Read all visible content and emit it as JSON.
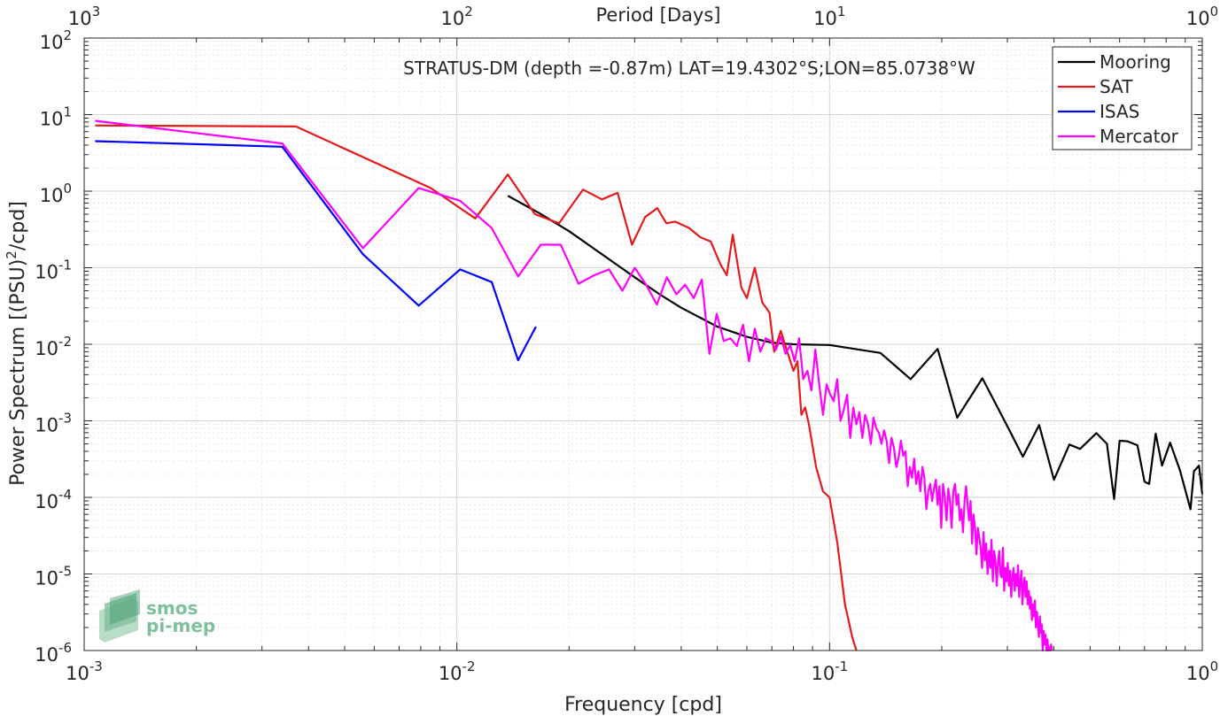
{
  "chart_data": {
    "type": "line",
    "title": "STRATUS-DM (depth =-0.87m) LAT=19.4302°S;LON=85.0738°W",
    "xlabel": "Frequency [cpd]",
    "ylabel": "Power Spectrum [(PSU)",
    "ylabel_sup": "2",
    "ylabel_tail": "/cpd]",
    "top_xlabel": "Period [Days]",
    "xscale": "log",
    "yscale": "log",
    "xlim": [
      0.001,
      1
    ],
    "ylim": [
      1e-06,
      100
    ],
    "grid": true,
    "legend_position": "top-right",
    "x_ticks": [
      {
        "base": "10",
        "exp": "-3",
        "value": 0.001
      },
      {
        "base": "10",
        "exp": "-2",
        "value": 0.01
      },
      {
        "base": "10",
        "exp": "-1",
        "value": 0.1
      },
      {
        "base": "10",
        "exp": "0",
        "value": 1
      }
    ],
    "y_ticks": [
      {
        "base": "10",
        "exp": "-6",
        "value": 1e-06
      },
      {
        "base": "10",
        "exp": "-5",
        "value": 1e-05
      },
      {
        "base": "10",
        "exp": "-4",
        "value": 0.0001
      },
      {
        "base": "10",
        "exp": "-3",
        "value": 0.001
      },
      {
        "base": "10",
        "exp": "-2",
        "value": 0.01
      },
      {
        "base": "10",
        "exp": "-1",
        "value": 0.1
      },
      {
        "base": "10",
        "exp": "0",
        "value": 1
      },
      {
        "base": "10",
        "exp": "1",
        "value": 10
      },
      {
        "base": "10",
        "exp": "2",
        "value": 100
      }
    ],
    "top_ticks": [
      {
        "base": "10",
        "exp": "3",
        "value": 0.001
      },
      {
        "base": "10",
        "exp": "2",
        "value": 0.01
      },
      {
        "base": "10",
        "exp": "1",
        "value": 0.1
      },
      {
        "base": "10",
        "exp": "0",
        "value": 1
      }
    ],
    "series": [
      {
        "name": "Mooring",
        "color": "#000000",
        "points": [
          [
            0.0137,
            0.87
          ],
          [
            0.0166,
            0.52
          ],
          [
            0.02,
            0.3
          ],
          [
            0.025,
            0.14
          ],
          [
            0.03,
            0.075
          ],
          [
            0.035,
            0.045
          ],
          [
            0.04,
            0.03
          ],
          [
            0.05,
            0.017
          ],
          [
            0.06,
            0.0125
          ],
          [
            0.07,
            0.0105
          ],
          [
            0.08,
            0.01
          ],
          [
            0.1,
            0.0098
          ],
          [
            0.137,
            0.0077
          ],
          [
            0.165,
            0.0035
          ],
          [
            0.195,
            0.0087
          ],
          [
            0.22,
            0.0011
          ],
          [
            0.257,
            0.0036
          ],
          [
            0.3,
            0.00085
          ],
          [
            0.33,
            0.00034
          ],
          [
            0.365,
            0.00088
          ],
          [
            0.4,
            0.00017
          ],
          [
            0.44,
            0.00049
          ],
          [
            0.47,
            0.00043
          ],
          [
            0.52,
            0.00069
          ],
          [
            0.555,
            0.0005
          ],
          [
            0.58,
            9.5e-05
          ],
          [
            0.6,
            0.00055
          ],
          [
            0.63,
            0.00054
          ],
          [
            0.67,
            0.00048
          ],
          [
            0.7,
            0.00016
          ],
          [
            0.72,
            0.00015
          ],
          [
            0.75,
            0.00068
          ],
          [
            0.78,
            0.00026
          ],
          [
            0.82,
            0.00052
          ],
          [
            0.87,
            0.00023
          ],
          [
            0.93,
            7e-05
          ],
          [
            0.95,
            0.00022
          ],
          [
            0.98,
            0.00026
          ],
          [
            1.0,
            0.00011
          ]
        ]
      },
      {
        "name": "SAT",
        "color": "#e41a1c",
        "points": [
          [
            0.00107,
            7.2
          ],
          [
            0.0037,
            7.0
          ],
          [
            0.0085,
            1.1
          ],
          [
            0.0112,
            0.44
          ],
          [
            0.0137,
            1.65
          ],
          [
            0.0162,
            0.5
          ],
          [
            0.0188,
            0.38
          ],
          [
            0.0218,
            1.05
          ],
          [
            0.0245,
            0.78
          ],
          [
            0.027,
            0.95
          ],
          [
            0.0295,
            0.2
          ],
          [
            0.032,
            0.46
          ],
          [
            0.0345,
            0.6
          ],
          [
            0.0365,
            0.38
          ],
          [
            0.0385,
            0.4
          ],
          [
            0.042,
            0.33
          ],
          [
            0.045,
            0.25
          ],
          [
            0.048,
            0.22
          ],
          [
            0.051,
            0.11
          ],
          [
            0.053,
            0.08
          ],
          [
            0.055,
            0.27
          ],
          [
            0.058,
            0.055
          ],
          [
            0.06,
            0.04
          ],
          [
            0.063,
            0.1
          ],
          [
            0.066,
            0.035
          ],
          [
            0.069,
            0.026
          ],
          [
            0.071,
            0.008
          ],
          [
            0.074,
            0.015
          ],
          [
            0.077,
            0.008
          ],
          [
            0.08,
            0.0045
          ],
          [
            0.082,
            0.006
          ],
          [
            0.084,
            0.0012
          ],
          [
            0.086,
            0.0015
          ],
          [
            0.088,
            0.0009
          ],
          [
            0.092,
            0.00025
          ],
          [
            0.096,
            0.00012
          ],
          [
            0.1,
            0.0001
          ],
          [
            0.105,
            2.5e-05
          ],
          [
            0.11,
            4e-06
          ],
          [
            0.115,
            1.5e-06
          ],
          [
            0.118,
            1e-06
          ]
        ]
      },
      {
        "name": "ISAS",
        "color": "#0000ff",
        "points": [
          [
            0.00107,
            4.5
          ],
          [
            0.0034,
            3.8
          ],
          [
            0.0056,
            0.15
          ],
          [
            0.0079,
            0.032
          ],
          [
            0.0102,
            0.095
          ],
          [
            0.0124,
            0.065
          ],
          [
            0.0146,
            0.0062
          ],
          [
            0.0163,
            0.017
          ]
        ]
      },
      {
        "name": "Mercator",
        "color": "#ff00ff",
        "points": [
          [
            0.00107,
            8.3
          ],
          [
            0.0034,
            4.2
          ],
          [
            0.0056,
            0.18
          ],
          [
            0.0079,
            1.1
          ],
          [
            0.0102,
            0.75
          ],
          [
            0.0124,
            0.33
          ],
          [
            0.0146,
            0.077
          ],
          [
            0.0168,
            0.2
          ],
          [
            0.019,
            0.2
          ],
          [
            0.0212,
            0.062
          ],
          [
            0.0234,
            0.08
          ],
          [
            0.0256,
            0.095
          ],
          [
            0.0278,
            0.05
          ],
          [
            0.03,
            0.1
          ],
          [
            0.0322,
            0.06
          ],
          [
            0.0344,
            0.033
          ],
          [
            0.0366,
            0.075
          ],
          [
            0.0388,
            0.045
          ],
          [
            0.041,
            0.06
          ],
          [
            0.0432,
            0.04
          ],
          [
            0.0454,
            0.07
          ],
          [
            0.0476,
            0.0075
          ],
          [
            0.0498,
            0.025
          ],
          [
            0.052,
            0.011
          ],
          [
            0.0542,
            0.012
          ],
          [
            0.0564,
            0.0095
          ],
          [
            0.0586,
            0.018
          ],
          [
            0.0608,
            0.006
          ],
          [
            0.063,
            0.016
          ],
          [
            0.0652,
            0.008
          ],
          [
            0.0674,
            0.012
          ],
          [
            0.0696,
            0.011
          ],
          [
            0.0718,
            0.0085
          ],
          [
            0.074,
            0.0125
          ],
          [
            0.0762,
            0.0075
          ],
          [
            0.0784,
            0.0098
          ],
          [
            0.0806,
            0.006
          ],
          [
            0.0828,
            0.012
          ],
          [
            0.085,
            0.0035
          ],
          [
            0.0872,
            0.0045
          ],
          [
            0.0894,
            0.0025
          ],
          [
            0.0916,
            0.0085
          ],
          [
            0.0938,
            0.003
          ],
          [
            0.096,
            0.0012
          ],
          [
            0.0982,
            0.003
          ],
          [
            0.1004,
            0.0022
          ],
          [
            0.1026,
            0.0018
          ],
          [
            0.1048,
            0.0035
          ],
          [
            0.107,
            0.001
          ],
          [
            0.1092,
            0.0014
          ],
          [
            0.1114,
            0.0022
          ],
          [
            0.1136,
            0.0006
          ],
          [
            0.1158,
            0.0015
          ],
          [
            0.118,
            0.0009
          ],
          [
            0.1202,
            0.0013
          ],
          [
            0.1224,
            0.0006
          ],
          [
            0.1246,
            0.0012
          ],
          [
            0.1268,
            0.0009
          ],
          [
            0.129,
            0.0005
          ],
          [
            0.1312,
            0.0011
          ],
          [
            0.1334,
            0.0008
          ],
          [
            0.1356,
            0.0007
          ],
          [
            0.1378,
            0.0005
          ],
          [
            0.14,
            0.00075
          ],
          [
            0.1422,
            0.00055
          ],
          [
            0.1444,
            0.00028
          ],
          [
            0.1466,
            0.0006
          ],
          [
            0.1488,
            0.00045
          ],
          [
            0.151,
            0.00025
          ],
          [
            0.1532,
            0.00033
          ],
          [
            0.1554,
            0.00055
          ],
          [
            0.1576,
            0.00035
          ],
          [
            0.1598,
            0.0004
          ],
          [
            0.162,
            0.00014
          ],
          [
            0.1642,
            0.00025
          ],
          [
            0.1664,
            0.00018
          ],
          [
            0.1686,
            0.00032
          ],
          [
            0.1708,
            0.00015
          ],
          [
            0.173,
            0.00022
          ],
          [
            0.1752,
            0.00012
          ],
          [
            0.1774,
            0.00025
          ],
          [
            0.1796,
            0.00018
          ],
          [
            0.1818,
            7e-05
          ],
          [
            0.184,
            0.00012
          ],
          [
            0.1862,
            0.00015
          ],
          [
            0.1884,
            9e-05
          ],
          [
            0.1906,
            0.00013
          ],
          [
            0.1928,
            0.00017
          ],
          [
            0.195,
            8e-05
          ],
          [
            0.1972,
            0.00014
          ],
          [
            0.1994,
            4e-05
          ],
          [
            0.2016,
            0.00015
          ],
          [
            0.2038,
            0.0001
          ],
          [
            0.206,
            5e-05
          ],
          [
            0.2082,
            0.00013
          ],
          [
            0.2104,
            9e-05
          ],
          [
            0.2126,
            4e-05
          ],
          [
            0.2148,
            0.00012
          ],
          [
            0.217,
            0.00015
          ],
          [
            0.2192,
            8e-05
          ],
          [
            0.2214,
            0.00011
          ],
          [
            0.2236,
            5e-05
          ],
          [
            0.2258,
            7e-05
          ],
          [
            0.228,
            3.5e-05
          ],
          [
            0.2302,
            9e-05
          ],
          [
            0.2324,
            0.00014
          ],
          [
            0.2346,
            8e-05
          ],
          [
            0.2368,
            5e-05
          ],
          [
            0.239,
            9e-05
          ],
          [
            0.2412,
            2.5e-05
          ],
          [
            0.2434,
            6e-05
          ],
          [
            0.2456,
            4e-05
          ],
          [
            0.2478,
            1.8e-05
          ],
          [
            0.25,
            4e-05
          ],
          [
            0.2522,
            3e-05
          ],
          [
            0.2544,
            2.2e-05
          ],
          [
            0.2566,
            1.2e-05
          ],
          [
            0.2588,
            3.5e-05
          ],
          [
            0.261,
            1.5e-05
          ],
          [
            0.2632,
            2.5e-05
          ],
          [
            0.2654,
            1e-05
          ],
          [
            0.2676,
            2e-05
          ],
          [
            0.2698,
            1.2e-05
          ],
          [
            0.272,
            2.8e-05
          ],
          [
            0.2742,
            8e-06
          ],
          [
            0.2764,
            2e-05
          ],
          [
            0.2786,
            1.5e-05
          ],
          [
            0.2808,
            7e-06
          ],
          [
            0.283,
            1.4e-05
          ],
          [
            0.2852,
            2e-05
          ],
          [
            0.2874,
            1e-05
          ],
          [
            0.2896,
            9e-06
          ],
          [
            0.2918,
            2.2e-05
          ],
          [
            0.294,
            6e-06
          ],
          [
            0.2962,
            1.2e-05
          ],
          [
            0.2984,
            8e-06
          ],
          [
            0.3006,
            1.4e-05
          ],
          [
            0.3028,
            7e-06
          ],
          [
            0.305,
            1.1e-05
          ],
          [
            0.3072,
            5e-06
          ],
          [
            0.3094,
            9e-06
          ],
          [
            0.3116,
            1.2e-05
          ],
          [
            0.3138,
            6e-06
          ],
          [
            0.316,
            1e-05
          ],
          [
            0.3182,
            7e-06
          ],
          [
            0.3204,
            1.3e-05
          ],
          [
            0.3226,
            5e-06
          ],
          [
            0.3248,
            8e-06
          ],
          [
            0.327,
            1.1e-05
          ],
          [
            0.3292,
            4e-06
          ],
          [
            0.3314,
            7e-06
          ],
          [
            0.3336,
            9e-06
          ],
          [
            0.3358,
            5e-06
          ],
          [
            0.338,
            8e-06
          ],
          [
            0.3402,
            4e-06
          ],
          [
            0.3424,
            6e-06
          ],
          [
            0.3446,
            3.5e-06
          ],
          [
            0.3468,
            5e-06
          ],
          [
            0.349,
            2.5e-06
          ],
          [
            0.3512,
            4e-06
          ],
          [
            0.3534,
            2.8e-06
          ],
          [
            0.3556,
            4.5e-06
          ],
          [
            0.3578,
            2e-06
          ],
          [
            0.36,
            3.2e-06
          ],
          [
            0.3622,
            2.2e-06
          ],
          [
            0.3644,
            1.5e-06
          ],
          [
            0.3666,
            2.8e-06
          ],
          [
            0.3688,
            1.7e-06
          ],
          [
            0.371,
            2.2e-06
          ],
          [
            0.3732,
            1e-06
          ],
          [
            0.3754,
            1.8e-06
          ],
          [
            0.3776,
            1.2e-06
          ],
          [
            0.3798,
            1.6e-06
          ],
          [
            0.382,
            1e-06
          ],
          [
            0.3842,
            1.4e-06
          ],
          [
            0.3864,
            1e-06
          ],
          [
            0.3886,
            1.1e-06
          ],
          [
            0.3908,
            1e-06
          ],
          [
            0.393,
            1.2e-06
          ],
          [
            0.3952,
            1e-06
          ]
        ]
      }
    ],
    "watermark": {
      "line1": "smos",
      "line2": "pi-mep"
    }
  }
}
